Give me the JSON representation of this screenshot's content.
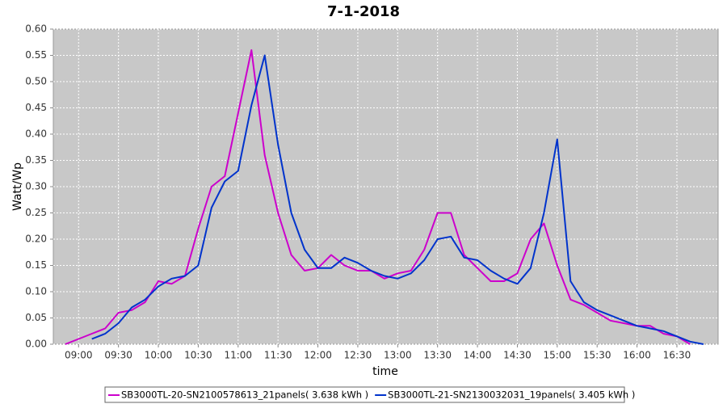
{
  "chart_data": {
    "type": "line",
    "title": "7-1-2018",
    "x_label": "time",
    "y_label": "Watt/Wp",
    "x": [
      "08:50",
      "09:00",
      "09:10",
      "09:20",
      "09:30",
      "09:40",
      "09:50",
      "10:00",
      "10:10",
      "10:20",
      "10:30",
      "10:40",
      "10:50",
      "11:00",
      "11:10",
      "11:20",
      "11:30",
      "11:40",
      "11:50",
      "12:00",
      "12:10",
      "12:20",
      "12:30",
      "12:40",
      "12:50",
      "13:00",
      "13:10",
      "13:20",
      "13:30",
      "13:40",
      "13:50",
      "14:00",
      "14:10",
      "14:20",
      "14:30",
      "14:40",
      "14:50",
      "15:00",
      "15:10",
      "15:20",
      "15:30",
      "15:40",
      "15:50",
      "16:00",
      "16:10",
      "16:20",
      "16:30",
      "16:40",
      "16:50"
    ],
    "series": [
      {
        "name": "SB3000TL-20-SN2100578613_21panels( 3.638 kWh )",
        "color": "#cc00cc",
        "values": [
          0.0,
          0.01,
          0.02,
          0.03,
          0.06,
          0.065,
          0.08,
          0.12,
          0.115,
          0.13,
          0.22,
          0.3,
          0.32,
          0.44,
          0.56,
          0.36,
          0.25,
          0.17,
          0.14,
          0.145,
          0.17,
          0.15,
          0.14,
          0.14,
          0.125,
          0.135,
          0.14,
          0.18,
          0.25,
          0.25,
          0.17,
          0.145,
          0.12,
          0.12,
          0.135,
          0.2,
          0.23,
          0.15,
          0.085,
          0.075,
          0.06,
          0.045,
          0.04,
          0.035,
          0.035,
          0.02,
          0.015,
          0.0,
          null
        ]
      },
      {
        "name": "SB3000TL-21-SN2130032031_19panels( 3.405 kWh )",
        "color": "#0033cc",
        "values": [
          null,
          null,
          0.01,
          0.02,
          0.04,
          0.07,
          0.085,
          0.11,
          0.125,
          0.13,
          0.15,
          0.26,
          0.31,
          0.33,
          0.455,
          0.55,
          0.38,
          0.25,
          0.18,
          0.145,
          0.145,
          0.165,
          0.155,
          0.14,
          0.13,
          0.125,
          0.135,
          0.16,
          0.2,
          0.205,
          0.165,
          0.16,
          0.14,
          0.125,
          0.115,
          0.145,
          0.25,
          0.39,
          0.12,
          0.08,
          0.065,
          0.055,
          0.045,
          0.035,
          0.03,
          0.025,
          0.015,
          0.005,
          0.0
        ]
      }
    ],
    "xlim": [
      "08:41",
      "17:01"
    ],
    "xticks": [
      "09:00",
      "09:30",
      "10:00",
      "10:30",
      "11:00",
      "11:30",
      "12:00",
      "12:30",
      "13:00",
      "13:30",
      "14:00",
      "14:30",
      "15:00",
      "15:30",
      "16:00",
      "16:30"
    ],
    "ylim": [
      0,
      0.6
    ],
    "yticks": [
      {
        "value": 0,
        "label": "0.00"
      },
      {
        "value": 0.05,
        "label": "0.05"
      },
      {
        "value": 0.1,
        "label": "0.10"
      },
      {
        "value": 0.15,
        "label": "0.15"
      },
      {
        "value": 0.2,
        "label": "0.20"
      },
      {
        "value": 0.25,
        "label": "0.25"
      },
      {
        "value": 0.3,
        "label": "0.30"
      },
      {
        "value": 0.35,
        "label": "0.35"
      },
      {
        "value": 0.4,
        "label": "0.40"
      },
      {
        "value": 0.45,
        "label": "0.45"
      },
      {
        "value": 0.5,
        "label": "0.50"
      },
      {
        "value": 0.55,
        "label": "0.55"
      },
      {
        "value": 0.6,
        "label": "0.60"
      }
    ],
    "grid": true,
    "legend": "bottom"
  }
}
